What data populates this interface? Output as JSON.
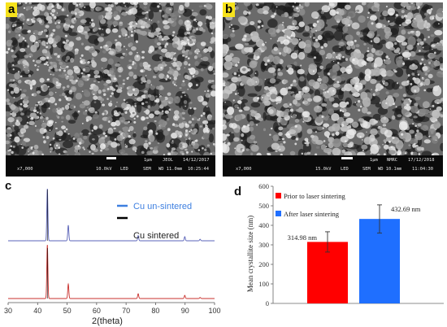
{
  "panel_a": {
    "label": "a",
    "scale_text": "1μm",
    "vendor": "JEOL",
    "date": "14/12/2017",
    "magnification": "x7,000",
    "voltage": "10.0kV",
    "detector_mode": "LED",
    "sem_label": "SEM",
    "wd": "WD 11.0mm",
    "time": "10:25:44"
  },
  "panel_b": {
    "label": "b",
    "scale_text": "1μm",
    "vendor": "NMRC",
    "date": "17/12/2018",
    "magnification": "x7,000",
    "voltage": "15.0kV",
    "detector_mode": "LED",
    "sem_label": "SEM",
    "wd": "WD 10.1mm",
    "time": "11:04:30"
  },
  "panel_c": {
    "label": "c",
    "xlabel": "2(theta)",
    "legend": [
      {
        "name": "Cu un-sintered",
        "color": "#3d7fe0"
      },
      {
        "name": "Cu sintered",
        "color": "#000000"
      }
    ],
    "colors": {
      "top_trace": "#5a63b8",
      "bottom_trace": "#c9302c"
    },
    "chart_data": {
      "type": "line",
      "xlim": [
        30,
        100
      ],
      "x_ticks": [
        30,
        40,
        50,
        60,
        70,
        80,
        90,
        100
      ],
      "peaks_two_theta": [
        43.3,
        50.4,
        74.1,
        89.9,
        95.1
      ],
      "series": [
        {
          "name": "Cu un-sintered",
          "peak_rel_intensity": [
            1.0,
            0.3,
            0.1,
            0.08,
            0.03
          ]
        },
        {
          "name": "Cu sintered",
          "peak_rel_intensity": [
            1.0,
            0.27,
            0.09,
            0.06,
            0.02
          ]
        }
      ]
    }
  },
  "panel_d": {
    "label": "d",
    "ylabel": "Mean crystallite size (nm)",
    "legend": [
      {
        "name": "Prior to laser sintering",
        "color": "#ff0000"
      },
      {
        "name": "After laser sintering",
        "color": "#1f6fff"
      }
    ],
    "chart_data": {
      "type": "bar",
      "ylim": [
        0,
        600
      ],
      "y_ticks": [
        0,
        100,
        200,
        300,
        400,
        500,
        600
      ],
      "categories": [
        "Prior to laser sintering",
        "After laser sintering"
      ],
      "values": [
        314.98,
        432.69
      ],
      "errors": [
        52,
        72
      ],
      "data_labels": [
        "314.98 nm",
        "432.69 nm"
      ],
      "colors": [
        "#ff0000",
        "#1f6fff"
      ]
    }
  }
}
